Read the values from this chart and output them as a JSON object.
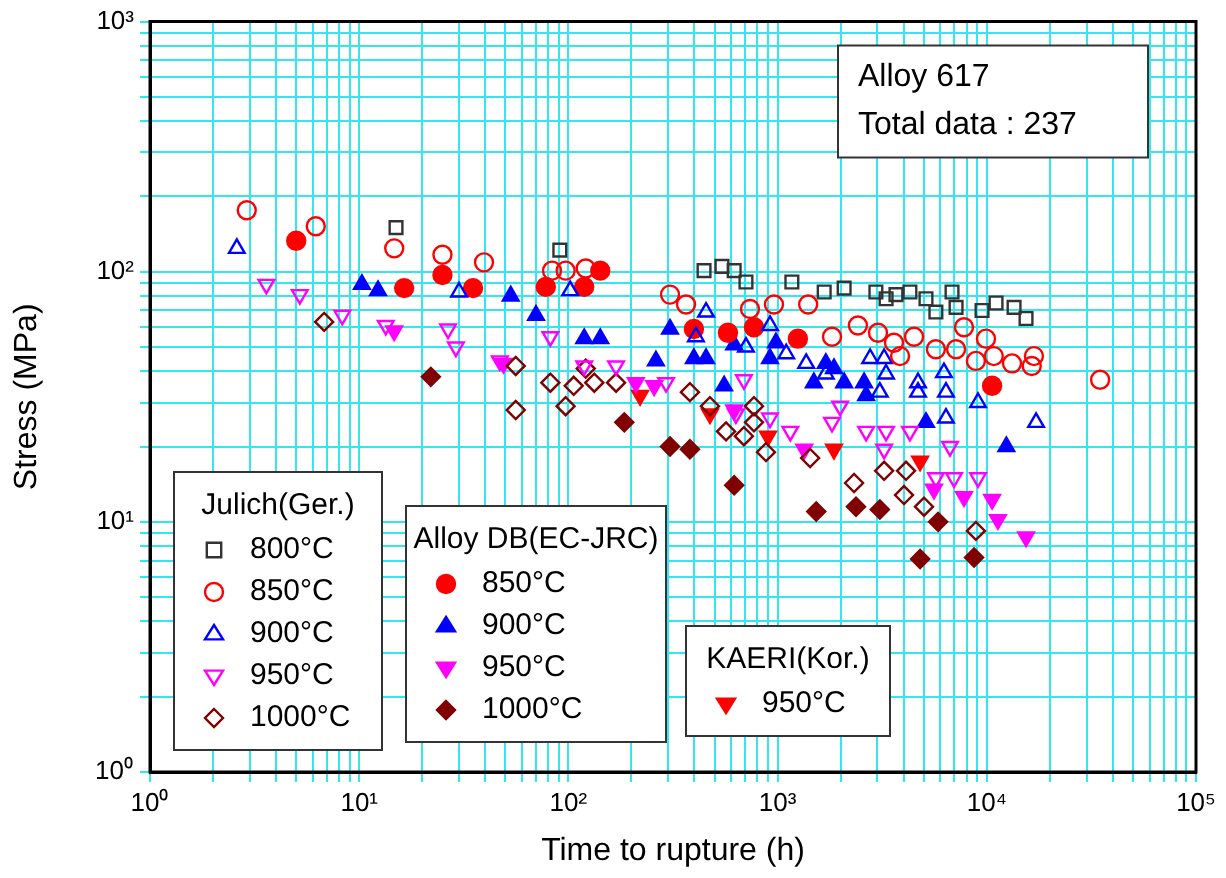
{
  "chart_data": {
    "type": "scatter",
    "xlabel": "Time to rupture (h)",
    "ylabel": "Stress (MPa)",
    "log": "xy",
    "grid": true,
    "legend": "bottom left",
    "xlim": [
      1,
      100000
    ],
    "ylim": [
      1,
      1000
    ],
    "xticks": [
      {
        "value": 1,
        "label": "10⁰"
      },
      {
        "value": 2,
        "label": null
      },
      {
        "value": 3,
        "label": null
      },
      {
        "value": 4,
        "label": null
      },
      {
        "value": 5,
        "label": null
      },
      {
        "value": 6,
        "label": null
      },
      {
        "value": 7,
        "label": null
      },
      {
        "value": 8,
        "label": null
      },
      {
        "value": 9,
        "label": null
      },
      {
        "value": 10,
        "label": "10¹"
      },
      {
        "value": 20,
        "label": null
      },
      {
        "value": 30,
        "label": null
      },
      {
        "value": 40,
        "label": null
      },
      {
        "value": 50,
        "label": null
      },
      {
        "value": 60,
        "label": null
      },
      {
        "value": 70,
        "label": null
      },
      {
        "value": 80,
        "label": null
      },
      {
        "value": 90,
        "label": null
      },
      {
        "value": 100,
        "label": "10²"
      },
      {
        "value": 200,
        "label": null
      },
      {
        "value": 300,
        "label": null
      },
      {
        "value": 400,
        "label": null
      },
      {
        "value": 500,
        "label": null
      },
      {
        "value": 600,
        "label": null
      },
      {
        "value": 700,
        "label": null
      },
      {
        "value": 800,
        "label": null
      },
      {
        "value": 900,
        "label": null
      },
      {
        "value": 1000,
        "label": "10³"
      },
      {
        "value": 2000,
        "label": null
      },
      {
        "value": 3000,
        "label": null
      },
      {
        "value": 4000,
        "label": null
      },
      {
        "value": 5000,
        "label": null
      },
      {
        "value": 6000,
        "label": null
      },
      {
        "value": 7000,
        "label": null
      },
      {
        "value": 8000,
        "label": null
      },
      {
        "value": 9000,
        "label": null
      },
      {
        "value": 10000,
        "label": "10⁴"
      },
      {
        "value": 20000,
        "label": null
      },
      {
        "value": 30000,
        "label": null
      },
      {
        "value": 40000,
        "label": null
      },
      {
        "value": 50000,
        "label": null
      },
      {
        "value": 60000,
        "label": null
      },
      {
        "value": 70000,
        "label": null
      },
      {
        "value": 80000,
        "label": null
      },
      {
        "value": 90000,
        "label": null
      },
      {
        "value": 100000,
        "label": "10⁵"
      }
    ],
    "yticks": [
      {
        "value": 1,
        "label": "10⁰"
      },
      {
        "value": 2,
        "label": null
      },
      {
        "value": 3,
        "label": null
      },
      {
        "value": 4,
        "label": null
      },
      {
        "value": 5,
        "label": null
      },
      {
        "value": 6,
        "label": null
      },
      {
        "value": 7,
        "label": null
      },
      {
        "value": 8,
        "label": null
      },
      {
        "value": 9,
        "label": null
      },
      {
        "value": 10,
        "label": "10¹"
      },
      {
        "value": 20,
        "label": null
      },
      {
        "value": 30,
        "label": null
      },
      {
        "value": 40,
        "label": null
      },
      {
        "value": 50,
        "label": null
      },
      {
        "value": 60,
        "label": null
      },
      {
        "value": 70,
        "label": null
      },
      {
        "value": 80,
        "label": null
      },
      {
        "value": 90,
        "label": null
      },
      {
        "value": 100,
        "label": "10²"
      },
      {
        "value": 200,
        "label": null
      },
      {
        "value": 300,
        "label": null
      },
      {
        "value": 400,
        "label": null
      },
      {
        "value": 500,
        "label": null
      },
      {
        "value": 600,
        "label": null
      },
      {
        "value": 700,
        "label": null
      },
      {
        "value": 800,
        "label": null
      },
      {
        "value": 900,
        "label": null
      },
      {
        "value": 1000,
        "label": "10³"
      }
    ],
    "annotations": [
      "Alloy 617",
      "Total data : 237",
      "Julich(Ger.)",
      "Alloy DB(EC-JRC)",
      "KAERI(Kor.)"
    ],
    "series": [
      {
        "name": "800°C",
        "color": "#333333",
        "marker": "square",
        "x": [
          15,
          91,
          445,
          542,
          620,
          706,
          1170,
          1670,
          2080,
          2950,
          3300,
          3680,
          4290,
          5120,
          5710,
          6820,
          7130,
          9490,
          11070,
          13500,
          15400
        ],
        "values": [
          150,
          122,
          101,
          105,
          101,
          91,
          91,
          83,
          86,
          83,
          78,
          81,
          83,
          78,
          69,
          83,
          72,
          70,
          75,
          72,
          65
        ]
      },
      {
        "name": "850°C",
        "color": "#ff0000",
        "marker": "circle",
        "x": [
          2.9,
          6.2,
          14.7,
          25,
          39.5,
          83.5,
          97,
          121,
          306,
          365,
          738,
          961,
          1400,
          1820,
          2420,
          3020,
          3600,
          3850,
          4490,
          5710,
          7130,
          7780,
          8870,
          9910,
          10800,
          13200,
          16400,
          16800,
          34800
        ],
        "values": [
          176,
          152,
          124,
          117,
          109,
          101,
          101,
          103,
          81,
          74,
          71,
          74,
          74,
          55,
          61,
          57,
          52,
          46,
          55,
          49,
          49,
          60,
          44,
          54,
          46,
          43,
          42,
          46,
          37
        ]
      },
      {
        "name": "900°C",
        "color": "#0000ff",
        "marker": "triangle",
        "x": [
          2.6,
          30,
          102,
          407,
          455,
          706,
          920,
          1100,
          1370,
          1700,
          2770,
          3080,
          3230,
          3300,
          4690,
          4690,
          6240,
          6380,
          6380,
          9080,
          17200
        ],
        "values": [
          124,
          83,
          84,
          55,
          69,
          50,
          61,
          47,
          43,
          39,
          45,
          33,
          45,
          39,
          36,
          33,
          39.5,
          33,
          26,
          30,
          25
        ]
      },
      {
        "name": "950°C",
        "color": "#ff00ff",
        "marker": "triangle-down",
        "x": [
          3.6,
          5.2,
          8.3,
          13.4,
          26.6,
          29,
          47,
          82,
          119,
          169,
          293,
          632,
          690,
          920,
          1150,
          1820,
          1990,
          2650,
          3230,
          3300,
          4290,
          5710,
          6670,
          6970,
          9080
        ],
        "values": [
          89,
          81,
          67,
          61,
          59,
          50,
          44,
          55,
          42,
          42,
          36,
          27,
          37,
          26,
          23,
          25,
          29,
          23,
          19.5,
          23,
          23,
          15,
          20,
          15,
          15
        ]
      },
      {
        "name": "1000°C",
        "color": "#800000",
        "marker": "diamond",
        "x": [
          6.8,
          56,
          56,
          82,
          97,
          106,
          121,
          133,
          169,
          381,
          475,
          567,
          690,
          771,
          771,
          880,
          1430,
          2320,
          3230,
          4020,
          4110,
          5010,
          8870
        ],
        "values": [
          63,
          42,
          28,
          36,
          29,
          35,
          41,
          36,
          36,
          33,
          29,
          23,
          22,
          29,
          25,
          19,
          18,
          14.3,
          16,
          12.8,
          16,
          11.5,
          9.2
        ]
      },
      {
        "name": "850°C",
        "color": "#ff0000",
        "marker": "circle",
        "x": [
          5,
          16.4,
          25,
          35,
          78,
          119,
          142,
          398,
          579,
          771,
          1250,
          10600
        ],
        "values": [
          133,
          86,
          97,
          86,
          87,
          87,
          101,
          59,
          57,
          60,
          54,
          35
        ]
      },
      {
        "name": "900°C",
        "color": "#0000ff",
        "marker": "triangle",
        "x": [
          10.3,
          12.3,
          53,
          70,
          119,
          142,
          262,
          306,
          398,
          455,
          555,
          620,
          920,
          982,
          1490,
          1700,
          1860,
          2080,
          2590,
          2650,
          5120,
          12400
        ],
        "values": [
          89,
          84,
          80,
          67,
          54,
          54,
          44,
          59,
          45,
          45,
          35,
          51,
          45,
          52,
          36,
          43,
          41,
          36,
          36,
          32,
          25,
          20
        ]
      },
      {
        "name": "950°C",
        "color": "#ff00ff",
        "marker": "triangle-down",
        "x": [
          14.7,
          49,
          210,
          257,
          620,
          1340,
          5590,
          7780,
          10600,
          11300,
          15400
        ],
        "values": [
          58,
          43,
          36,
          35,
          28,
          19.5,
          13.5,
          12.6,
          12.3,
          10.2,
          8.7
        ]
      },
      {
        "name": "1000°C",
        "color": "#800000",
        "marker": "diamond",
        "x": [
          22,
          185,
          306,
          381,
          620,
          1530,
          2370,
          3080,
          4800,
          5850,
          8690
        ],
        "values": [
          38,
          25,
          20,
          19.5,
          14,
          11,
          11.5,
          11.2,
          7.1,
          10,
          7.2
        ]
      },
      {
        "name": "950°C",
        "color": "#ff0000",
        "marker": "triangle-down",
        "x": [
          220,
          475,
          900,
          1860,
          4800
        ],
        "values": [
          32,
          27,
          22,
          19.5,
          17.5
        ]
      }
    ]
  }
}
